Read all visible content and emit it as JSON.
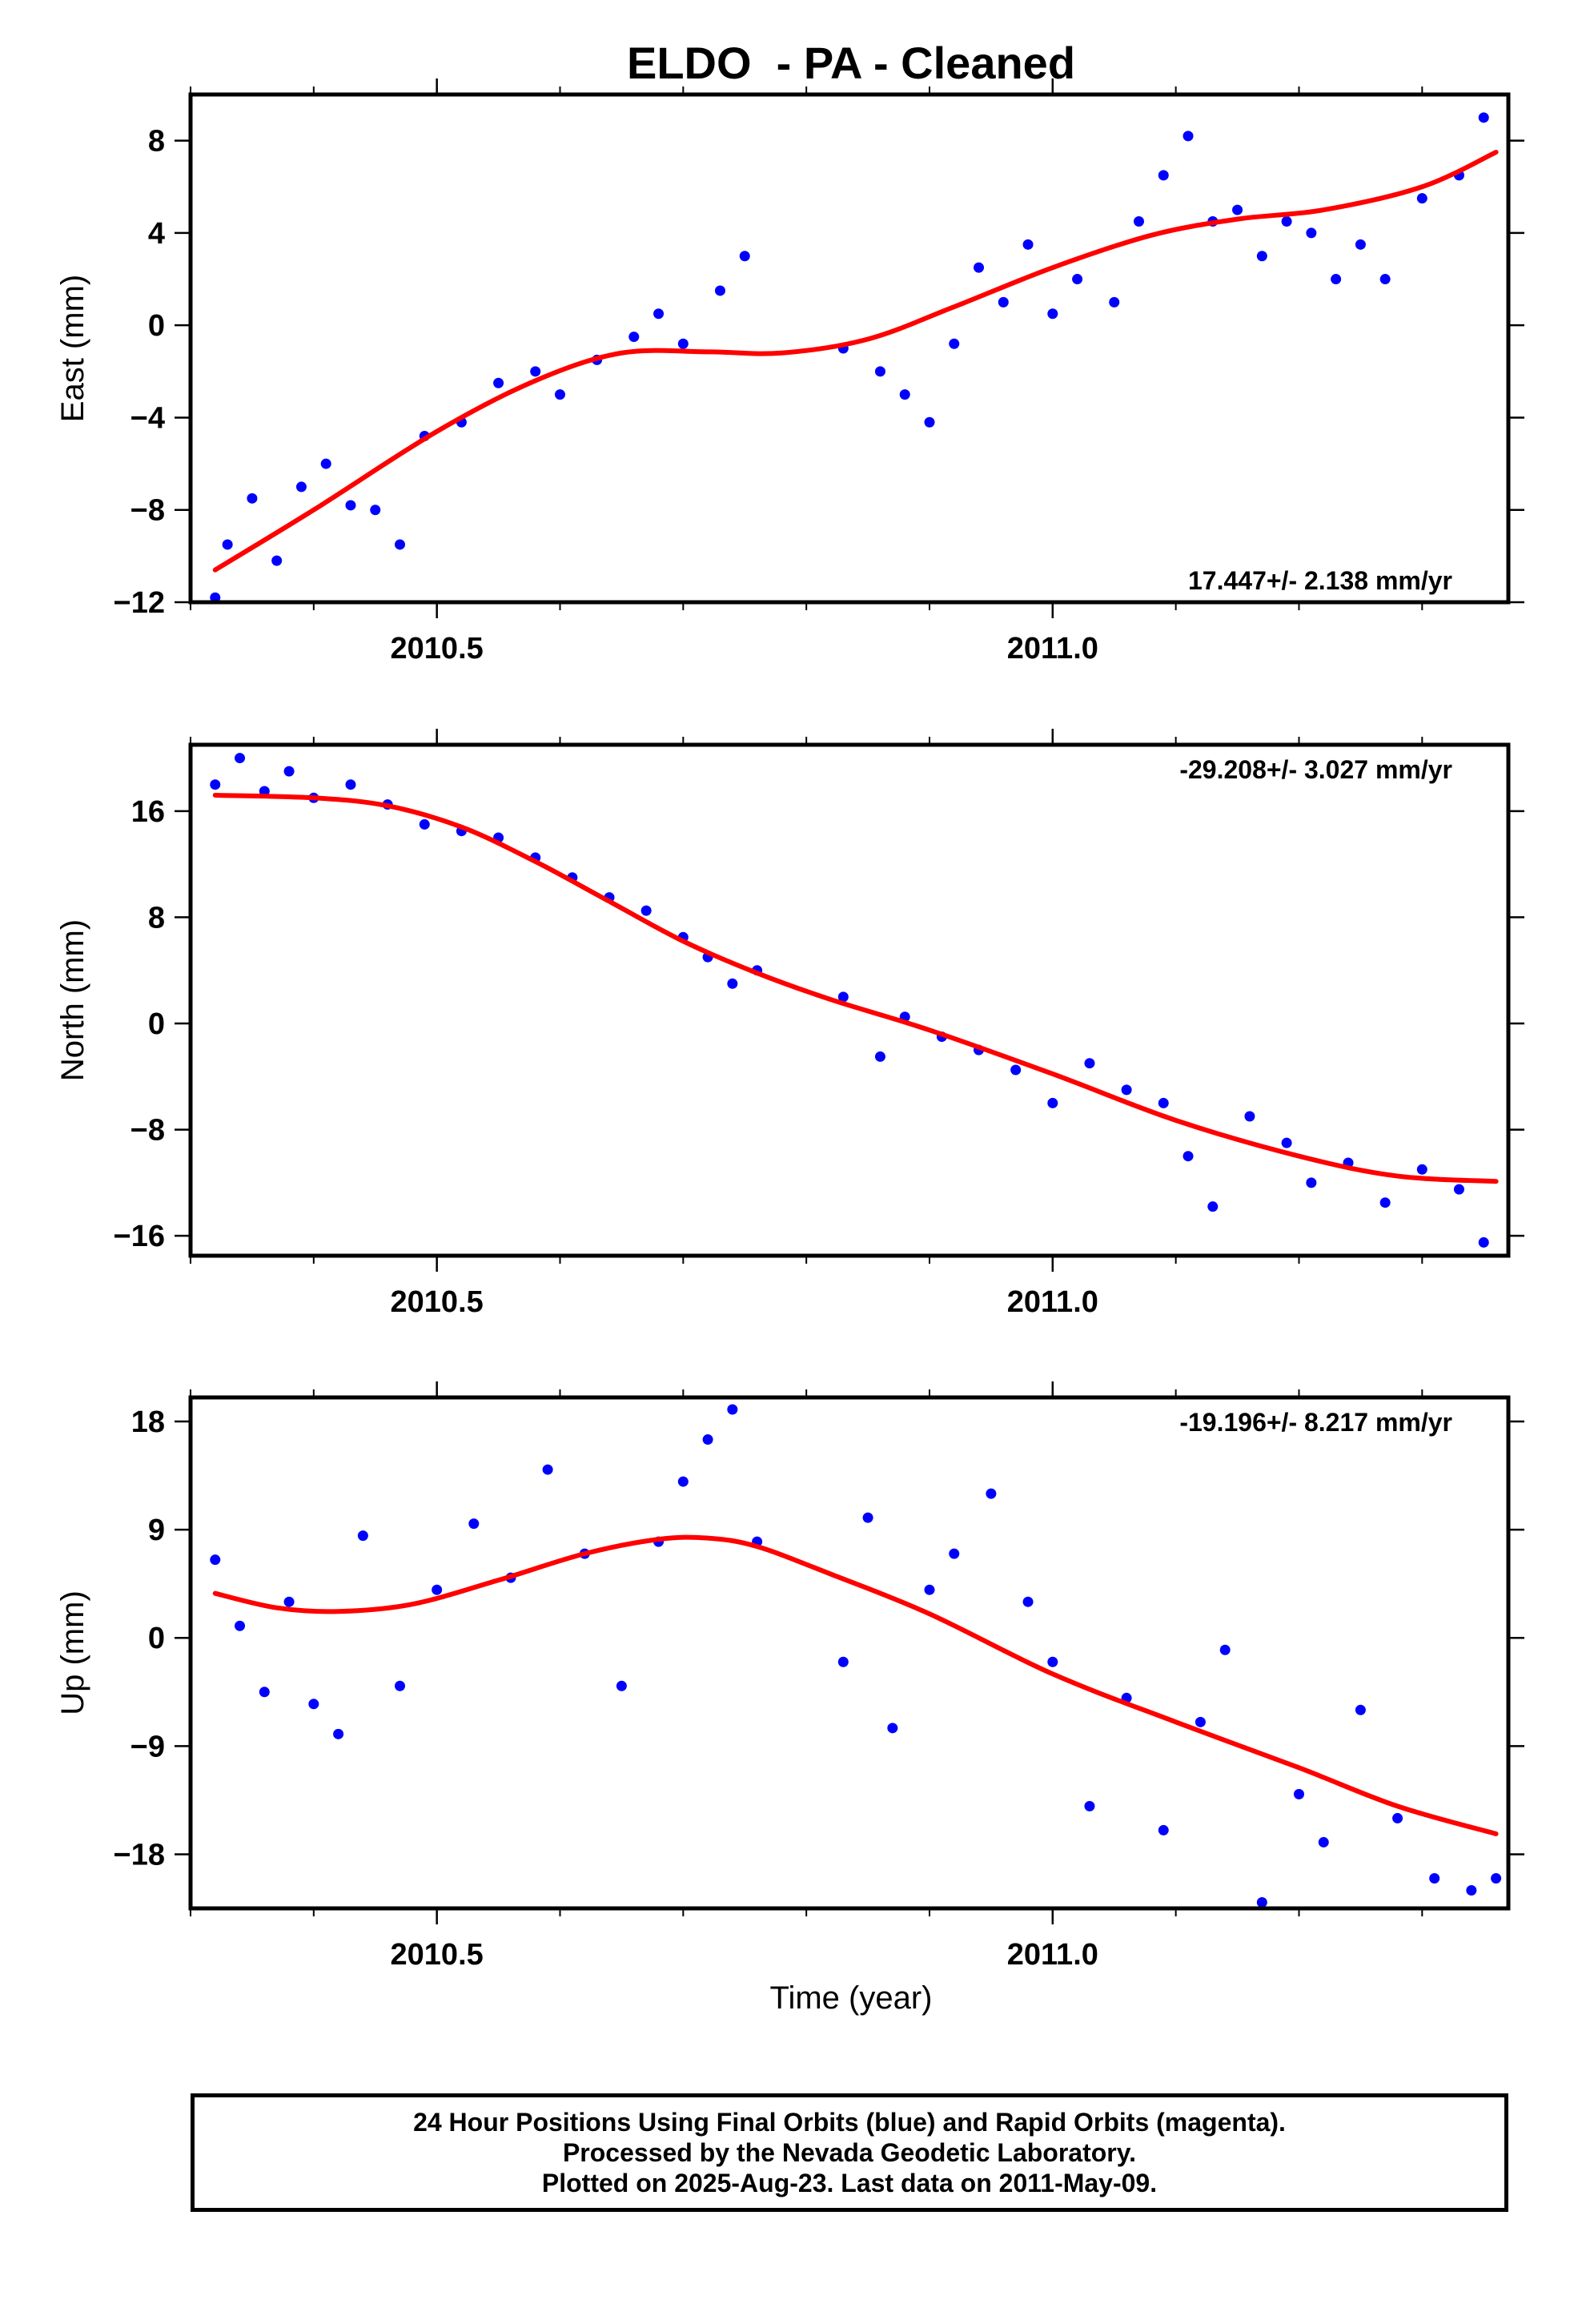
{
  "title": "ELDO  - PA - Cleaned",
  "xlabel": "Time (year)",
  "caption": [
    "24 Hour Positions Using Final Orbits (blue) and Rapid Orbits (magenta).",
    "Processed by the Nevada Geodetic Laboratory.",
    "Plotted on 2025-Aug-23. Last data on 2011-May-09."
  ],
  "colors": {
    "points": "#0000ff",
    "fit": "#ff0000",
    "frame": "#000000"
  },
  "chart_data": [
    {
      "type": "scatter",
      "ylabel": "East (mm)",
      "rate_label": "17.447+/- 2.138 mm/yr",
      "xlim": [
        2010.3,
        2011.37
      ],
      "ylim": [
        -12,
        10
      ],
      "yticks": [
        -12,
        -8,
        -4,
        0,
        4,
        8
      ],
      "xticks": [
        2010.5,
        2011.0
      ],
      "xtick_labels": [
        "2010.5",
        "2011.0"
      ],
      "x": [
        2010.32,
        2010.33,
        2010.35,
        2010.37,
        2010.39,
        2010.41,
        2010.43,
        2010.45,
        2010.47,
        2010.49,
        2010.52,
        2010.55,
        2010.58,
        2010.6,
        2010.63,
        2010.66,
        2010.68,
        2010.7,
        2010.73,
        2010.75,
        2010.83,
        2010.86,
        2010.88,
        2010.9,
        2010.92,
        2010.94,
        2010.96,
        2010.98,
        2011.0,
        2011.02,
        2011.05,
        2011.07,
        2011.09,
        2011.11,
        2011.13,
        2011.15,
        2011.17,
        2011.19,
        2011.21,
        2011.23,
        2011.25,
        2011.27,
        2011.3,
        2011.33,
        2011.35
      ],
      "y": [
        -11.8,
        -9.5,
        -7.5,
        -10.2,
        -7.0,
        -6.0,
        -7.8,
        -8.0,
        -9.5,
        -4.8,
        -4.2,
        -2.5,
        -2.0,
        -3.0,
        -1.5,
        -0.5,
        0.5,
        -0.8,
        1.5,
        3.0,
        -1.0,
        -2.0,
        -3.0,
        -4.2,
        -0.8,
        2.5,
        1.0,
        3.5,
        0.5,
        2.0,
        1.0,
        4.5,
        6.5,
        8.2,
        4.5,
        5.0,
        3.0,
        4.5,
        4.0,
        2.0,
        3.5,
        2.0,
        5.5,
        6.5,
        9.0
      ],
      "fit_x": [
        2010.32,
        2010.4,
        2010.5,
        2010.58,
        2010.65,
        2010.72,
        2010.78,
        2010.85,
        2010.92,
        2011.0,
        2011.08,
        2011.15,
        2011.22,
        2011.3,
        2011.36
      ],
      "fit_y": [
        -10.6,
        -8.0,
        -4.6,
        -2.4,
        -1.2,
        -1.15,
        -1.2,
        -0.6,
        0.8,
        2.5,
        3.9,
        4.6,
        5.0,
        6.0,
        7.5
      ]
    },
    {
      "type": "scatter",
      "ylabel": "North (mm)",
      "rate_label": "-29.208+/- 3.027 mm/yr",
      "xlim": [
        2010.3,
        2011.37
      ],
      "ylim": [
        -17.5,
        21
      ],
      "yticks": [
        -16,
        -8,
        0,
        8,
        16
      ],
      "xticks": [
        2010.5,
        2011.0
      ],
      "xtick_labels": [
        "2010.5",
        "2011.0"
      ],
      "x": [
        2010.32,
        2010.34,
        2010.36,
        2010.38,
        2010.4,
        2010.43,
        2010.46,
        2010.49,
        2010.52,
        2010.55,
        2010.58,
        2010.61,
        2010.64,
        2010.67,
        2010.7,
        2010.72,
        2010.74,
        2010.76,
        2010.83,
        2010.86,
        2010.88,
        2010.91,
        2010.94,
        2010.97,
        2011.0,
        2011.03,
        2011.06,
        2011.09,
        2011.11,
        2011.13,
        2011.16,
        2011.19,
        2011.21,
        2011.24,
        2011.27,
        2011.3,
        2011.33,
        2011.35
      ],
      "y": [
        18.0,
        20.0,
        17.5,
        19.0,
        17.0,
        18.0,
        16.5,
        15.0,
        14.5,
        14.0,
        12.5,
        11.0,
        9.5,
        8.5,
        6.5,
        5.0,
        3.0,
        4.0,
        2.0,
        -2.5,
        0.5,
        -1.0,
        -2.0,
        -3.5,
        -6.0,
        -3.0,
        -5.0,
        -6.0,
        -10.0,
        -13.8,
        -7.0,
        -9.0,
        -12.0,
        -10.5,
        -13.5,
        -11.0,
        -12.5,
        -16.5
      ],
      "fit_x": [
        2010.32,
        2010.4,
        2010.46,
        2010.52,
        2010.58,
        2010.64,
        2010.7,
        2010.76,
        2010.82,
        2010.9,
        2011.0,
        2011.1,
        2011.2,
        2011.28,
        2011.36
      ],
      "fit_y": [
        17.2,
        17.0,
        16.4,
        14.8,
        12.2,
        9.2,
        6.2,
        3.8,
        1.8,
        -0.5,
        -3.8,
        -7.3,
        -10.0,
        -11.5,
        -11.9
      ]
    },
    {
      "type": "scatter",
      "ylabel": "Up (mm)",
      "rate_label": "-19.196+/- 8.217 mm/yr",
      "xlim": [
        2010.3,
        2011.37
      ],
      "ylim": [
        -22.5,
        20
      ],
      "yticks": [
        -18,
        -9,
        0,
        9,
        18
      ],
      "xticks": [
        2010.5,
        2011.0
      ],
      "xtick_labels": [
        "2010.5",
        "2011.0"
      ],
      "x": [
        2010.32,
        2010.34,
        2010.36,
        2010.38,
        2010.4,
        2010.42,
        2010.44,
        2010.47,
        2010.5,
        2010.53,
        2010.56,
        2010.59,
        2010.62,
        2010.65,
        2010.68,
        2010.7,
        2010.72,
        2010.74,
        2010.76,
        2010.83,
        2010.85,
        2010.87,
        2010.9,
        2010.92,
        2010.95,
        2010.98,
        2011.0,
        2011.03,
        2011.06,
        2011.09,
        2011.12,
        2011.14,
        2011.17,
        2011.2,
        2011.22,
        2011.25,
        2011.28,
        2011.31,
        2011.34,
        2011.36
      ],
      "y": [
        6.5,
        1.0,
        -4.5,
        3.0,
        -5.5,
        -8.0,
        8.5,
        -4.0,
        4.0,
        9.5,
        5.0,
        14.0,
        7.0,
        -4.0,
        8.0,
        13.0,
        16.5,
        19.0,
        8.0,
        -2.0,
        10.0,
        -7.5,
        4.0,
        7.0,
        12.0,
        3.0,
        -2.0,
        -14.0,
        -5.0,
        -16.0,
        -7.0,
        -1.0,
        -22.0,
        -13.0,
        -17.0,
        -6.0,
        -15.0,
        -20.0,
        -21.0,
        -20.0
      ],
      "fit_x": [
        2010.32,
        2010.37,
        2010.42,
        2010.48,
        2010.55,
        2010.62,
        2010.68,
        2010.72,
        2010.76,
        2010.82,
        2010.9,
        2011.0,
        2011.1,
        2011.2,
        2011.28,
        2011.36
      ],
      "fit_y": [
        3.7,
        2.5,
        2.2,
        2.8,
        4.8,
        7.0,
        8.2,
        8.3,
        7.6,
        5.3,
        2.0,
        -3.0,
        -7.0,
        -10.8,
        -14.0,
        -16.3
      ]
    }
  ]
}
